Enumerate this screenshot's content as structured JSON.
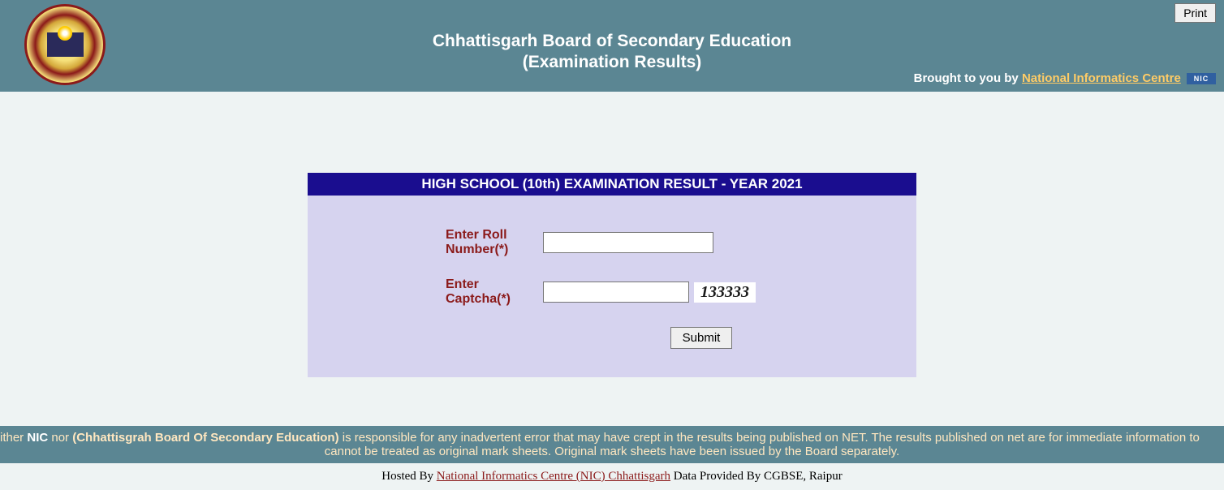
{
  "header": {
    "title_line1": "Chhattisgarh Board of Secondary Education",
    "title_line2": "(Examination Results)",
    "print_button": "Print",
    "brought_by_text": "Brought to you by ",
    "brought_by_link": "National Informatics Centre",
    "nic_badge": "NIC"
  },
  "form": {
    "title": "HIGH SCHOOL (10th) EXAMINATION RESULT - YEAR 2021",
    "roll_label": "Enter Roll Number(*)",
    "captcha_label": "Enter Captcha(*)",
    "captcha_value": "133333",
    "submit_label": "Submit"
  },
  "marquee": {
    "line1_prefix": "ither ",
    "line1_nic": "NIC",
    "line1_nor": " nor ",
    "line1_board": "(Chhattisgrah Board Of Secondary Education)",
    "line1_rest": " is responsible for any inadvertent error that may have crept in the results being published on NET. The results published on net are for immediate information to",
    "line2": "cannot be treated as original mark sheets. Original mark sheets have been issued by the Board separately."
  },
  "footer": {
    "hosted_by": "Hosted By ",
    "hosted_link": "National Informatics Centre (NIC) Chhattisgarh",
    "data_provided": "  Data Provided By CGBSE, Raipur"
  }
}
